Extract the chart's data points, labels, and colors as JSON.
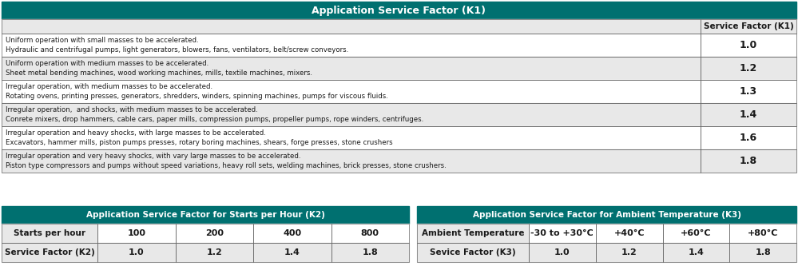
{
  "title_k1": "Application Service Factor (K1)",
  "header_color": "#007070",
  "header_text_color": "#ffffff",
  "bg_light": "#e8e8e8",
  "bg_white": "#ffffff",
  "text_dark": "#1a1a1a",
  "k1_col_header": "Service Factor (K1)",
  "k1_rows": [
    {
      "desc": "Uniform operation with small masses to be accelerated.\nHydraulic and centrifugal pumps, light generators, blowers, fans, ventilators, belt/screw conveyors.",
      "factor": "1.0"
    },
    {
      "desc": "Uniform operation with medium masses to be accelerated.\nSheet metal bending machines, wood working machines, mills, textile machines, mixers.",
      "factor": "1.2"
    },
    {
      "desc": "Irregular operation, with medium masses to be accelerated.\nRotating ovens, printing presses, generators, shredders, winders, spinning machines, pumps for viscous fluids.",
      "factor": "1.3"
    },
    {
      "desc": "Irregular operation,  and shocks, with medium masses to be accelerated.\nConrete mixers, drop hammers, cable cars, paper mills, compression pumps, propeller pumps, rope winders, centrifuges.",
      "factor": "1.4"
    },
    {
      "desc": "Irregular operation and heavy shocks, with large masses to be accelerated.\nExcavators, hammer mills, piston pumps presses, rotary boring machines, shears, forge presses, stone crushers",
      "factor": "1.6"
    },
    {
      "desc": "Irregular operation and very heavy shocks, with vary large masses to be accelerated.\nPiston type compressors and pumps without speed variations, heavy roll sets, welding machines, brick presses, stone crushers.",
      "factor": "1.8"
    }
  ],
  "title_k2": "Application Service Factor for Starts per Hour (K2)",
  "k2_row1_label": "Starts per hour",
  "k2_row1_values": [
    "100",
    "200",
    "400",
    "800"
  ],
  "k2_row2_label": "Service Factor (K2)",
  "k2_row2_values": [
    "1.0",
    "1.2",
    "1.4",
    "1.8"
  ],
  "title_k3": "Application Service Factor for Ambient Temperature (K3)",
  "k3_row1_label": "Ambient Temperature",
  "k3_row1_values": [
    "-30 to +30°C",
    "+40°C",
    "+60°C",
    "+80°C"
  ],
  "k3_row2_label": "Sevice Factor (K3)",
  "k3_row2_values": [
    "1.0",
    "1.2",
    "1.4",
    "1.8"
  ],
  "fig_w": 9.99,
  "fig_h": 3.48,
  "dpi": 100
}
